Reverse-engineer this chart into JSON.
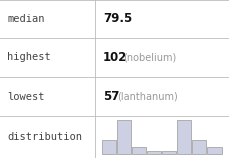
{
  "rows": [
    {
      "label": "median",
      "value": "79.5",
      "note": ""
    },
    {
      "label": "highest",
      "value": "102",
      "note": "(nobelium)"
    },
    {
      "label": "lowest",
      "value": "57",
      "note": "(lanthanum)"
    },
    {
      "label": "distribution",
      "value": "",
      "note": ""
    }
  ],
  "hist_bar_heights": [
    2,
    5,
    1,
    0.4,
    0.4,
    5,
    2,
    1
  ],
  "hist_bar_color": "#cdd0e3",
  "hist_bar_edge": "#999999",
  "background_color": "#ffffff",
  "grid_line_color": "#bbbbbb",
  "label_fontsize": 7.5,
  "value_fontsize": 8.5,
  "note_fontsize": 7,
  "col_split": 95,
  "row_splits": [
    0,
    38,
    77,
    116,
    158
  ]
}
